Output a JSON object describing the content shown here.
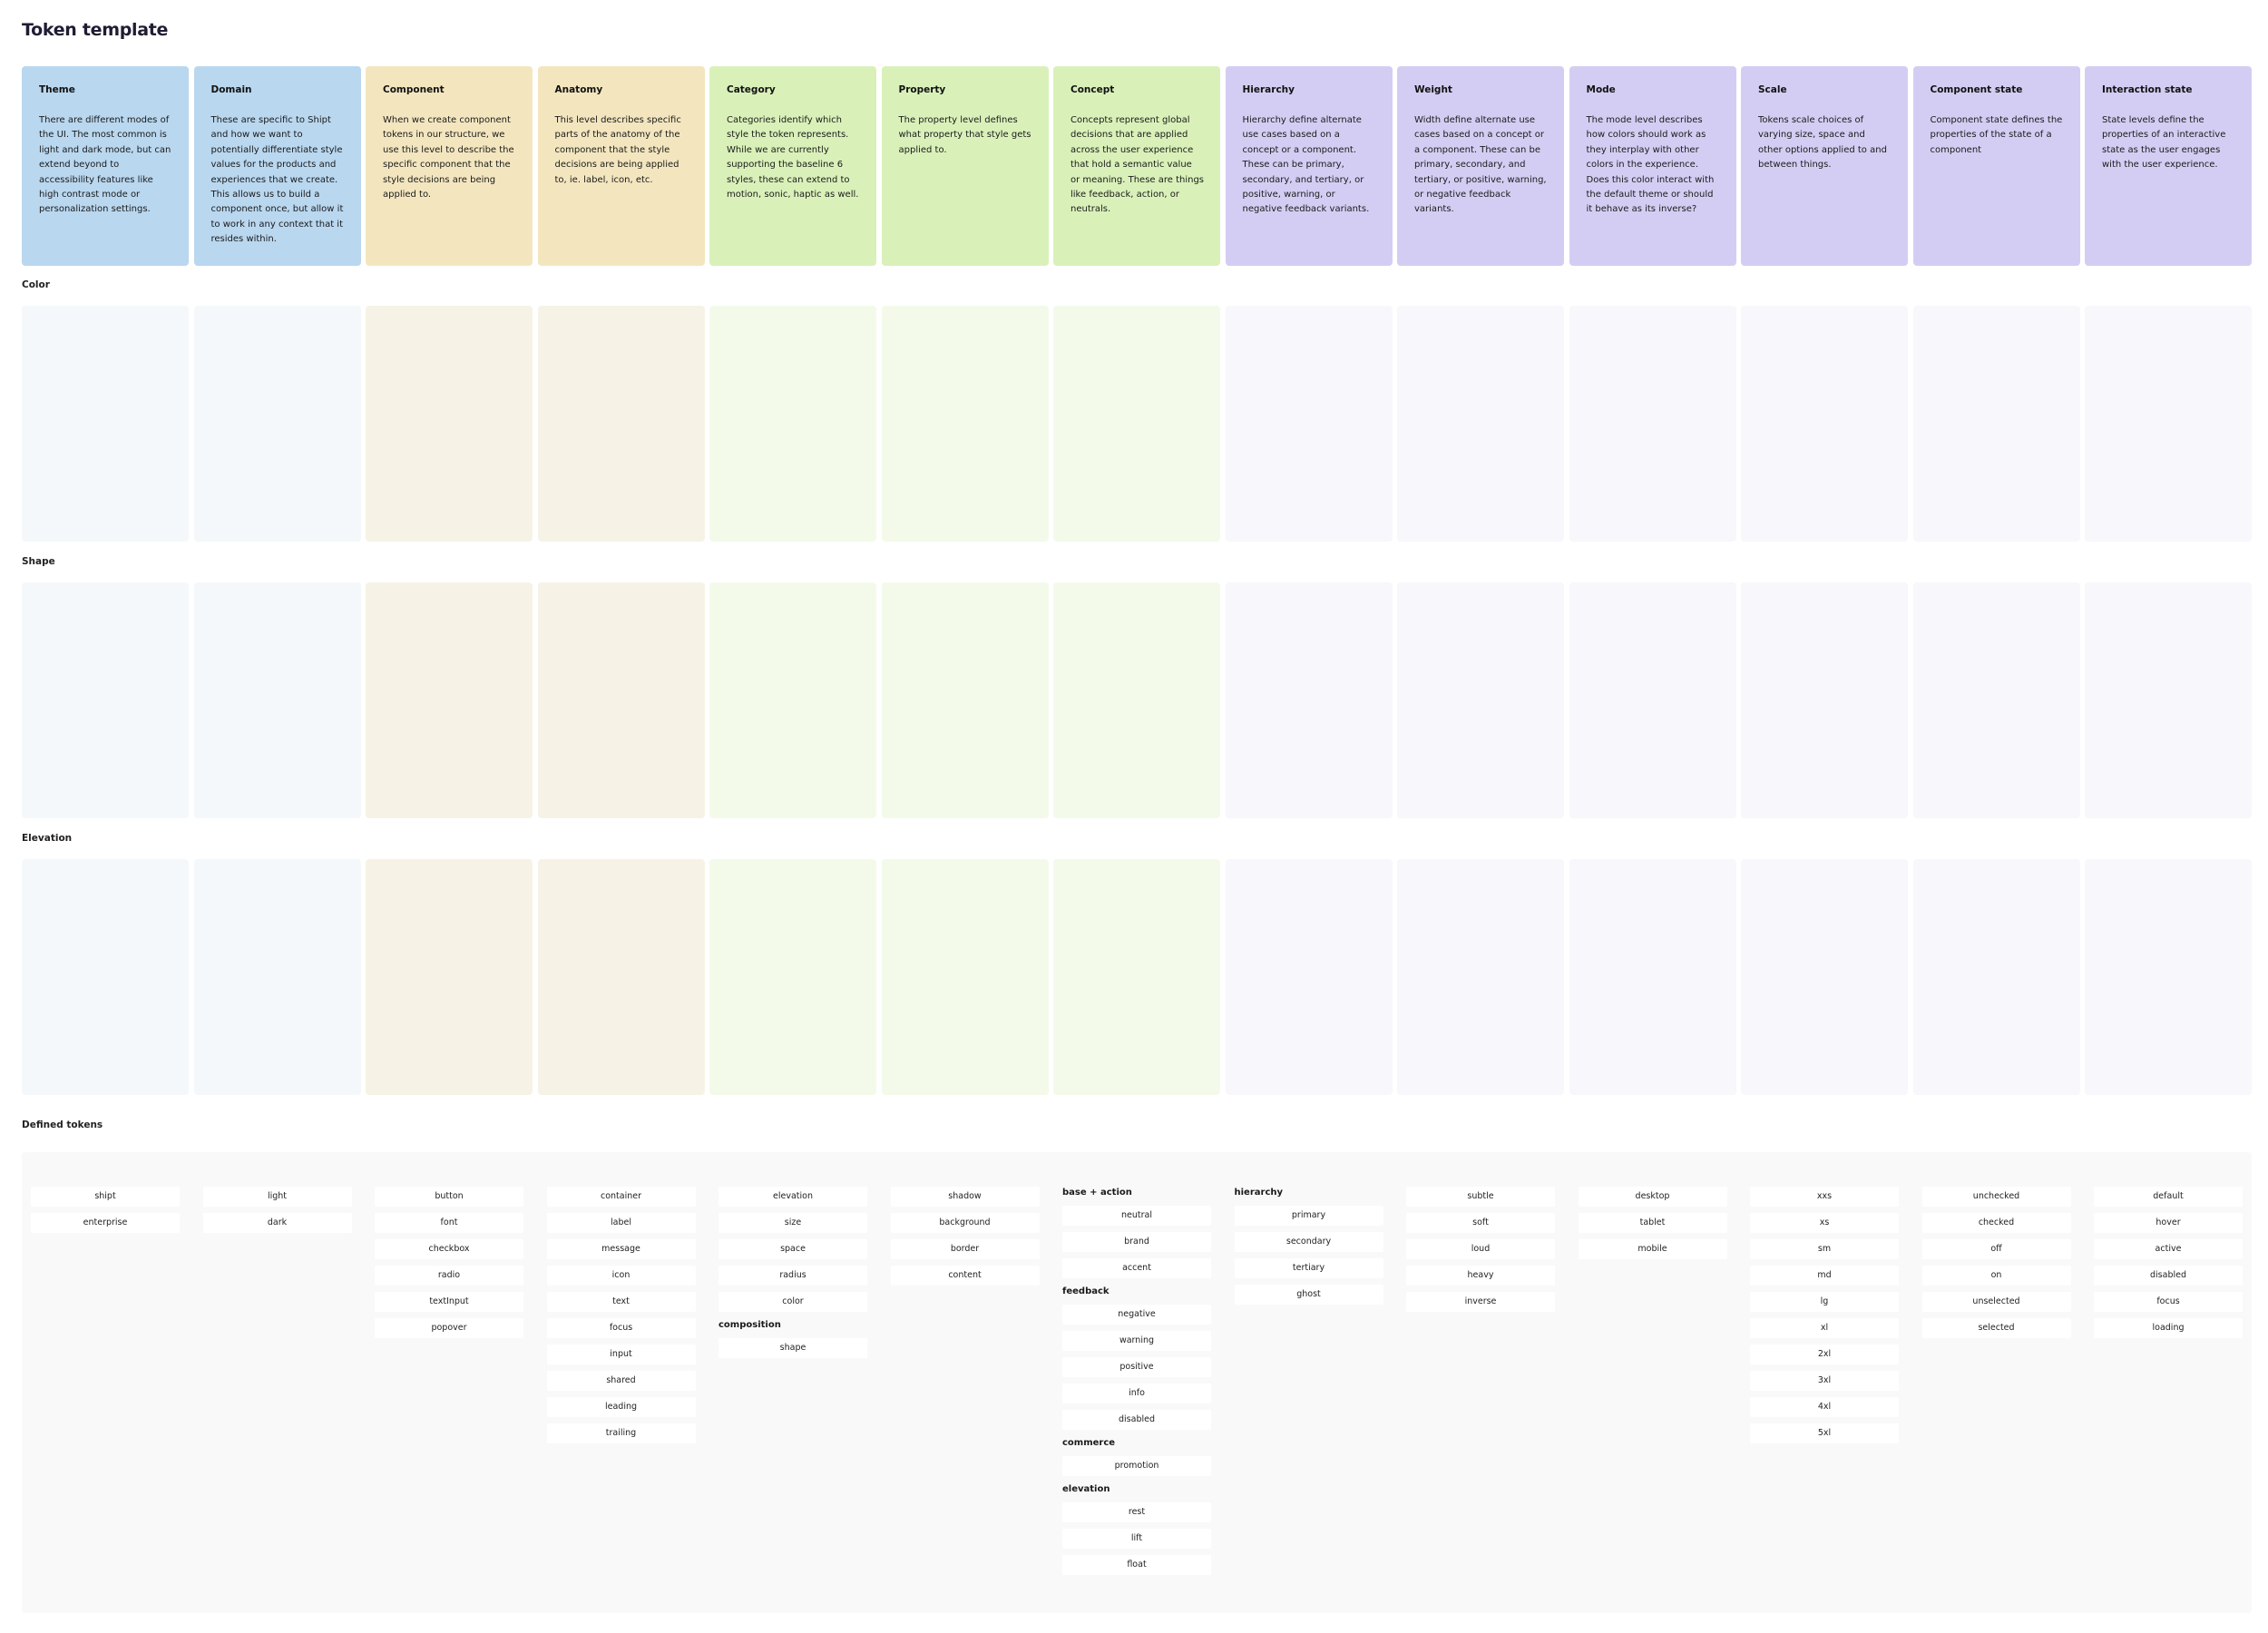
{
  "title": "Token template",
  "colors": {
    "blue": "#b9d7ef",
    "blue_light": "#f4f8fb",
    "yellow": "#f3e6bf",
    "yellow_light": "#f6f3e6",
    "green": "#d9f1b9",
    "green_light": "#f3faea",
    "purple": "#d4cdf3",
    "purple_light": "#f7f7fc"
  },
  "columns": [
    {
      "title": "Theme",
      "tone": "blue",
      "description": "There are different modes of the UI. The most common is light and dark mode, but can extend beyond to accessibility features like high contrast mode or personalization settings."
    },
    {
      "title": "Domain",
      "tone": "blue",
      "description": "These are specific to Shipt and how we want to potentially differentiate style values for the products and experiences that we create. This allows us to build a component once, but allow it to work in any context that it resides within."
    },
    {
      "title": "Component",
      "tone": "yellow",
      "description": "When we create component tokens in our structure, we use this level to describe the specific component that the style decisions are being applied to."
    },
    {
      "title": "Anatomy",
      "tone": "yellow",
      "description": "This level describes specific parts of the anatomy of the component that the style decisions are being applied to, ie. label, icon, etc."
    },
    {
      "title": "Category",
      "tone": "green",
      "description": "Categories identify which style the token represents. While we are currently supporting the baseline 6 styles, these can extend to motion, sonic, haptic as well."
    },
    {
      "title": "Property",
      "tone": "green",
      "description": "The property level defines what property that style gets applied to."
    },
    {
      "title": "Concept",
      "tone": "green",
      "description": "Concepts represent global decisions that are applied across the user experience that hold a semantic value or meaning. These are things like feedback, action, or neutrals."
    },
    {
      "title": "Hierarchy",
      "tone": "purple",
      "description": "Hierarchy define alternate use cases based on a concept or a component. These can be primary, secondary, and tertiary, or positive, warning, or negative feedback variants."
    },
    {
      "title": "Weight",
      "tone": "purple",
      "description": "Width define alternate use cases based on a concept or a component. These can be primary, secondary, and tertiary, or positive, warning, or negative feedback variants."
    },
    {
      "title": "Mode",
      "tone": "purple",
      "description": "The mode level describes how colors should work as they interplay with other colors in the experience. Does this color interact with the default theme or should it behave as its inverse?"
    },
    {
      "title": "Scale",
      "tone": "purple",
      "description": "Tokens scale choices of varying size, space and other options applied to and between things."
    },
    {
      "title": "Component state",
      "tone": "purple",
      "description": "Component state defines the properties of the state of a component"
    },
    {
      "title": "Interaction state",
      "tone": "purple",
      "description": "State levels define the properties of an interactive state as the user engages with the user experience."
    }
  ],
  "sections": [
    "Color",
    "Shape",
    "Elevation"
  ],
  "defined_tokens_label": "Defined tokens",
  "defined_tokens": [
    {
      "groups": [
        {
          "title": "",
          "items": [
            "shipt",
            "enterprise"
          ]
        }
      ]
    },
    {
      "groups": [
        {
          "title": "",
          "items": [
            "light",
            "dark"
          ]
        }
      ]
    },
    {
      "groups": [
        {
          "title": "",
          "items": [
            "button",
            "font",
            "checkbox",
            "radio",
            "textInput",
            "popover"
          ]
        }
      ]
    },
    {
      "groups": [
        {
          "title": "",
          "items": [
            "container",
            "label",
            "message",
            "icon",
            "text",
            "focus",
            "input",
            "shared",
            "leading",
            "trailing"
          ]
        }
      ]
    },
    {
      "groups": [
        {
          "title": "",
          "items": [
            "elevation",
            "size",
            "space",
            "radius",
            "color"
          ]
        },
        {
          "title": "composition",
          "items": [
            "shape"
          ]
        }
      ]
    },
    {
      "groups": [
        {
          "title": "",
          "items": [
            "shadow",
            "background",
            "border",
            "content"
          ]
        }
      ]
    },
    {
      "groups": [
        {
          "title": "base + action",
          "items": [
            "neutral",
            "brand",
            "accent"
          ]
        },
        {
          "title": "feedback",
          "items": [
            "negative",
            "warning",
            "positive",
            "info",
            "disabled"
          ]
        },
        {
          "title": "commerce",
          "items": [
            "promotion"
          ]
        },
        {
          "title": "elevation",
          "items": [
            "rest",
            "lift",
            "float"
          ]
        }
      ]
    },
    {
      "groups": [
        {
          "title": "hierarchy",
          "items": [
            "primary",
            "secondary",
            "tertiary",
            "ghost"
          ]
        }
      ]
    },
    {
      "groups": [
        {
          "title": "",
          "items": [
            "subtle",
            "soft",
            "loud",
            "heavy",
            "inverse"
          ]
        }
      ]
    },
    {
      "groups": [
        {
          "title": "",
          "items": [
            "desktop",
            "tablet",
            "mobile"
          ]
        }
      ]
    },
    {
      "groups": [
        {
          "title": "",
          "items": [
            "xxs",
            "xs",
            "sm",
            "md",
            "lg",
            "xl",
            "2xl",
            "3xl",
            "4xl",
            "5xl"
          ]
        }
      ]
    },
    {
      "groups": [
        {
          "title": "",
          "items": [
            "unchecked",
            "checked",
            "off",
            "on",
            "unselected",
            "selected"
          ]
        }
      ]
    },
    {
      "groups": [
        {
          "title": "",
          "items": [
            "default",
            "hover",
            "active",
            "disabled",
            "focus",
            "loading"
          ]
        }
      ]
    }
  ]
}
